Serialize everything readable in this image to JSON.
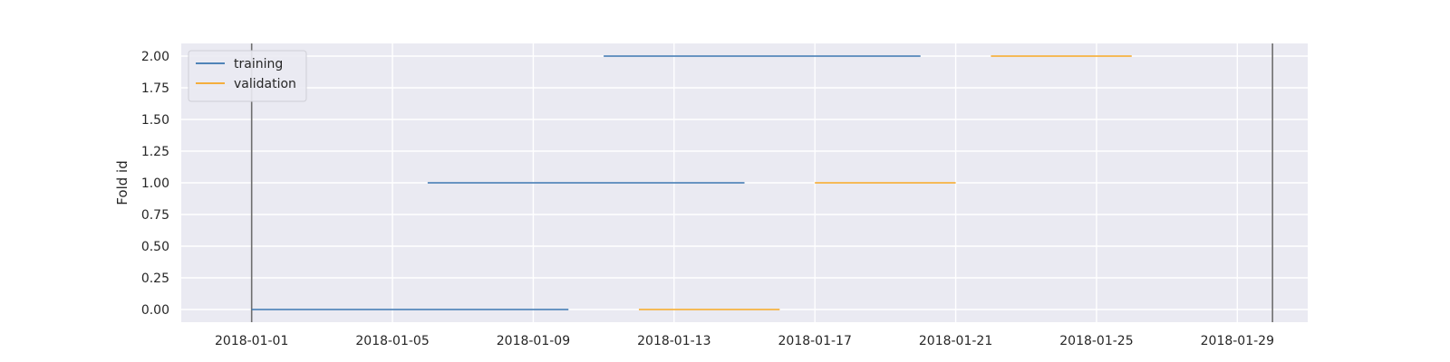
{
  "chart_data": {
    "type": "line",
    "title": "",
    "xlabel": "",
    "ylabel": "Fold id",
    "x_type": "date",
    "xlim": [
      "2017-12-30",
      "2018-01-31"
    ],
    "ylim": [
      -0.1,
      2.1
    ],
    "x_ticks": [
      "2018-01-01",
      "2018-01-05",
      "2018-01-09",
      "2018-01-13",
      "2018-01-17",
      "2018-01-21",
      "2018-01-25",
      "2018-01-29"
    ],
    "y_ticks": [
      "0.00",
      "0.25",
      "0.50",
      "0.75",
      "1.00",
      "1.25",
      "1.50",
      "1.75",
      "2.00"
    ],
    "grid": true,
    "legend_position": "top-left",
    "vertical_lines": [
      "2018-01-01",
      "2018-01-30"
    ],
    "vertical_line_color": "#6e6e6e",
    "series": [
      {
        "name": "training",
        "color": "#3a75b0",
        "segments": [
          {
            "fold": 0,
            "start": "2018-01-01",
            "end": "2018-01-10"
          },
          {
            "fold": 1,
            "start": "2018-01-06",
            "end": "2018-01-15"
          },
          {
            "fold": 2,
            "start": "2018-01-11",
            "end": "2018-01-20"
          }
        ]
      },
      {
        "name": "validation",
        "color": "#f5a623",
        "segments": [
          {
            "fold": 0,
            "start": "2018-01-12",
            "end": "2018-01-16"
          },
          {
            "fold": 1,
            "start": "2018-01-17",
            "end": "2018-01-21"
          },
          {
            "fold": 2,
            "start": "2018-01-22",
            "end": "2018-01-26"
          }
        ]
      }
    ],
    "colors": {
      "plot_background": "#eaeaf2",
      "grid": "#ffffff"
    }
  }
}
